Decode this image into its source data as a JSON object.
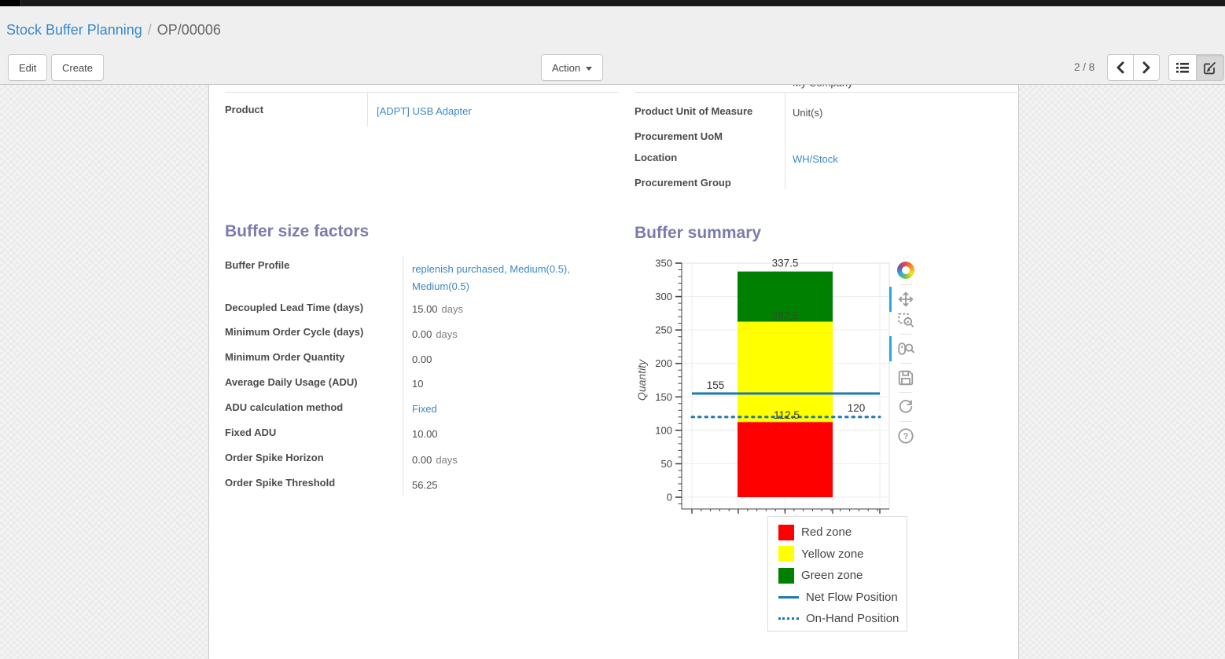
{
  "breadcrumb": {
    "parent": "Stock Buffer Planning",
    "separator": "/",
    "current": "OP/00006"
  },
  "toolbar": {
    "edit_label": "Edit",
    "create_label": "Create",
    "action_label": "Action"
  },
  "pager": {
    "text": "2 / 8"
  },
  "view_switcher": {
    "active": "form",
    "icons": [
      "list-view-icon",
      "form-view-icon"
    ]
  },
  "form": {
    "clipped_company_value": "My Company",
    "product": {
      "label": "Product",
      "value": "[ADPT] USB Adapter"
    },
    "right_fields": [
      {
        "label": "Product Unit of Measure",
        "value": "Unit(s)"
      },
      {
        "label": "Procurement UoM",
        "value": ""
      },
      {
        "label": "Location",
        "value": "WH/Stock"
      },
      {
        "label": "Procurement Group",
        "value": ""
      }
    ],
    "buffer_factors": {
      "title": "Buffer size factors",
      "fields": [
        {
          "label": "Buffer Profile",
          "value": "replenish purchased, Medium(0.5), Medium(0.5)"
        },
        {
          "label": "Decoupled Lead Time (days)",
          "value": "15.00",
          "suffix": "days"
        },
        {
          "label": "Minimum Order Cycle (days)",
          "value": "0.00",
          "suffix": "days"
        },
        {
          "label": "Minimum Order Quantity",
          "value": "0.00"
        },
        {
          "label": "Average Daily Usage (ADU)",
          "value": "10"
        },
        {
          "label": "ADU calculation method",
          "value": "Fixed"
        },
        {
          "label": "Fixed ADU",
          "value": "10.00"
        },
        {
          "label": "Order Spike Horizon",
          "value": "0.00",
          "suffix": "days"
        },
        {
          "label": "Order Spike Threshold",
          "value": "56.25"
        }
      ]
    },
    "buffer_summary": {
      "title": "Buffer summary"
    }
  },
  "chart_data": {
    "type": "bar",
    "title": "",
    "xlabel": "",
    "ylabel": "Quantity",
    "ylim": [
      0,
      350
    ],
    "ytick_step": 50,
    "ytick_minor_step": 10,
    "grid": true,
    "zones": [
      {
        "name": "Red zone",
        "from": 0,
        "to": 112.5,
        "color": "#ff0000"
      },
      {
        "name": "Yellow zone",
        "from": 112.5,
        "to": 262.5,
        "color": "#ffff00"
      },
      {
        "name": "Green zone",
        "from": 262.5,
        "to": 337.5,
        "color": "#008000"
      }
    ],
    "lines": [
      {
        "name": "Net Flow Position",
        "value": 155,
        "style": "solid",
        "color": "#1f77b4"
      },
      {
        "name": "On-Hand Position",
        "value": 120,
        "style": "dotted",
        "color": "#1f77b4"
      }
    ],
    "annotations": [
      "337.5",
      "262.5",
      "155",
      "112.5",
      "120"
    ],
    "legend_position": "below-right",
    "legend": [
      {
        "label": "Red zone",
        "swatch": "rect",
        "color": "#ff0000"
      },
      {
        "label": "Yellow zone",
        "swatch": "rect",
        "color": "#ffff00"
      },
      {
        "label": "Green zone",
        "swatch": "rect",
        "color": "#008000"
      },
      {
        "label": "Net Flow Position",
        "swatch": "line",
        "color": "#1f77b4"
      },
      {
        "label": "On-Hand Position",
        "swatch": "dotted",
        "color": "#1f77b4"
      }
    ],
    "bokeh_toolbar": {
      "tools": [
        "bokeh-logo",
        "pan-tool",
        "box-zoom-tool",
        "wheel-zoom-tool",
        "save-tool",
        "reset-tool",
        "help-tool"
      ],
      "active_tools": [
        "pan-tool",
        "wheel-zoom-tool"
      ],
      "active_color": "#26aae1"
    }
  },
  "colors": {
    "heading": "#7c7bad",
    "link": "#3a88c8",
    "net_flow_line": "#1f77b4"
  }
}
